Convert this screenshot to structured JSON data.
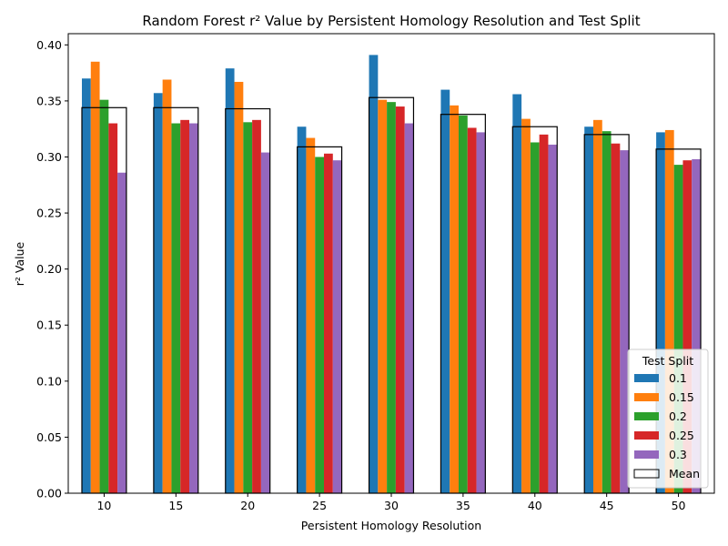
{
  "chart_data": {
    "type": "bar",
    "title": "Random Forest r² Value by Persistent Homology Resolution and Test Split",
    "xlabel": "Persistent Homology Resolution",
    "ylabel": "r² Value",
    "categories": [
      "10",
      "15",
      "20",
      "25",
      "30",
      "35",
      "40",
      "45",
      "50"
    ],
    "ylim": [
      0,
      0.41
    ],
    "yticks": [
      0.0,
      0.05,
      0.1,
      0.15,
      0.2,
      0.25,
      0.3,
      0.35,
      0.4
    ],
    "ytick_labels": [
      "0.00",
      "0.05",
      "0.10",
      "0.15",
      "0.20",
      "0.25",
      "0.30",
      "0.35",
      "0.40"
    ],
    "grid": false,
    "legend": {
      "title": "Test Split",
      "placement": "lower-right",
      "mean_label": "Mean"
    },
    "series": [
      {
        "name": "0.1",
        "color": "#1f77b4",
        "values": [
          0.37,
          0.357,
          0.379,
          0.327,
          0.391,
          0.36,
          0.356,
          0.327,
          0.322
        ]
      },
      {
        "name": "0.15",
        "color": "#ff7f0e",
        "values": [
          0.385,
          0.369,
          0.367,
          0.317,
          0.351,
          0.346,
          0.334,
          0.333,
          0.324
        ]
      },
      {
        "name": "0.2",
        "color": "#2ca02c",
        "values": [
          0.351,
          0.33,
          0.331,
          0.3,
          0.349,
          0.337,
          0.313,
          0.323,
          0.293
        ]
      },
      {
        "name": "0.25",
        "color": "#d62728",
        "values": [
          0.33,
          0.333,
          0.333,
          0.303,
          0.345,
          0.326,
          0.32,
          0.312,
          0.297
        ]
      },
      {
        "name": "0.3",
        "color": "#9467bd",
        "values": [
          0.286,
          0.33,
          0.304,
          0.297,
          0.33,
          0.322,
          0.311,
          0.306,
          0.298
        ]
      }
    ],
    "mean": [
      0.344,
      0.344,
      0.343,
      0.309,
      0.353,
      0.338,
      0.327,
      0.32,
      0.307
    ]
  }
}
